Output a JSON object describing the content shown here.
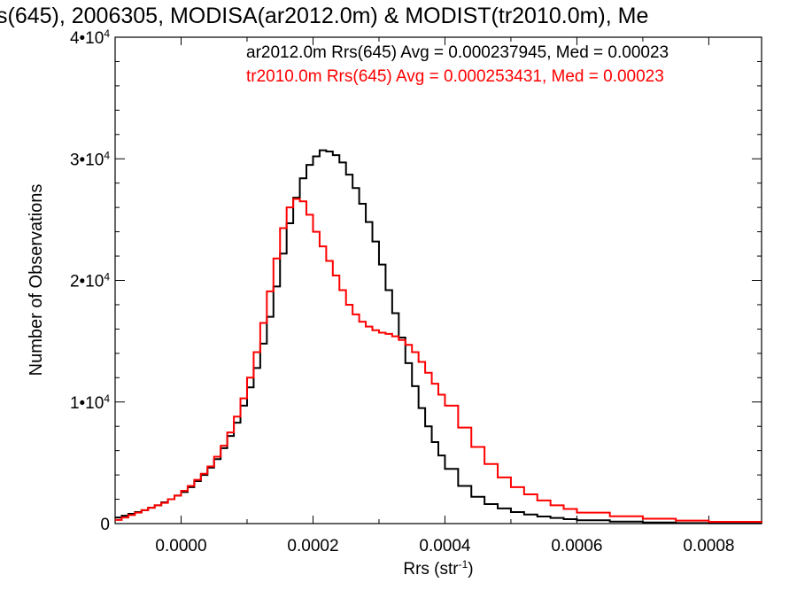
{
  "chart_data": {
    "type": "line",
    "title": "s(645), 2006305, MODISA(ar2012.0m) & MODIST(tr2010.0m), Me",
    "xlabel": "Rrs (str",
    "xlabel_sup": "-1",
    "xlabel_close": ")",
    "ylabel": "Number of Observations",
    "xlim": [
      -0.0001,
      0.00088
    ],
    "ylim": [
      0,
      40000
    ],
    "x_ticks": [
      0.0,
      0.0002,
      0.0004,
      0.0006,
      0.0008
    ],
    "x_tick_labels": [
      "0.0000",
      "0.0002",
      "0.0004",
      "0.0006",
      "0.0008"
    ],
    "y_ticks": [
      {
        "value": 0,
        "base": "0",
        "exp": ""
      },
      {
        "value": 10000,
        "base": "1•10",
        "exp": "4"
      },
      {
        "value": 20000,
        "base": "2•10",
        "exp": "4"
      },
      {
        "value": 30000,
        "base": "3•10",
        "exp": "4"
      },
      {
        "value": 40000,
        "base": "4•10",
        "exp": "4"
      }
    ],
    "grid": false,
    "legend_position": "top-right",
    "series": [
      {
        "name": "ar2012.0m Rrs(645)",
        "legend_text": "ar2012.0m Rrs(645) Avg = 0.000237945, Med = 0.00023",
        "color": "#000000",
        "x": [
          -0.0001,
          -9e-05,
          -8e-05,
          -7e-05,
          -6e-05,
          -5e-05,
          -4e-05,
          -3e-05,
          -2e-05,
          -1e-05,
          0.0,
          1e-05,
          2e-05,
          3e-05,
          4e-05,
          5e-05,
          6e-05,
          7e-05,
          8e-05,
          9e-05,
          0.0001,
          0.00011,
          0.00012,
          0.00013,
          0.00014,
          0.00015,
          0.00016,
          0.00017,
          0.00018,
          0.00019,
          0.0002,
          0.00021,
          0.00022,
          0.00023,
          0.00024,
          0.00025,
          0.00026,
          0.00027,
          0.00028,
          0.00029,
          0.0003,
          0.00031,
          0.00032,
          0.00033,
          0.00034,
          0.00035,
          0.00036,
          0.00037,
          0.00038,
          0.00039,
          0.0004,
          0.00042,
          0.00044,
          0.00046,
          0.00048,
          0.0005,
          0.00052,
          0.00054,
          0.00056,
          0.00058,
          0.0006,
          0.00065,
          0.0007,
          0.00075,
          0.0008,
          0.00088
        ],
        "y": [
          500,
          650,
          800,
          950,
          1100,
          1300,
          1500,
          1750,
          2000,
          2300,
          2600,
          3000,
          3500,
          4000,
          4600,
          5300,
          6200,
          7200,
          8300,
          9700,
          11200,
          12800,
          14800,
          17000,
          19500,
          22200,
          24700,
          26800,
          28400,
          29500,
          30200,
          30700,
          30600,
          30300,
          29700,
          28700,
          27600,
          26300,
          24800,
          23200,
          21300,
          19200,
          17300,
          15300,
          13200,
          11300,
          9500,
          8000,
          6700,
          5600,
          4500,
          3100,
          2200,
          1600,
          1250,
          950,
          750,
          580,
          460,
          360,
          270,
          160,
          90,
          50,
          30,
          15
        ]
      },
      {
        "name": "tr2010.0m Rrs(645)",
        "legend_text": "tr2010.0m Rrs(645) Avg = 0.000253431, Med = 0.00023",
        "color": "#ff0000",
        "x": [
          -0.0001,
          -9e-05,
          -8e-05,
          -7e-05,
          -6e-05,
          -5e-05,
          -4e-05,
          -3e-05,
          -2e-05,
          -1e-05,
          0.0,
          1e-05,
          2e-05,
          3e-05,
          4e-05,
          5e-05,
          6e-05,
          7e-05,
          8e-05,
          9e-05,
          0.0001,
          0.00011,
          0.00012,
          0.00013,
          0.00014,
          0.00015,
          0.00016,
          0.00017,
          0.00018,
          0.00019,
          0.0002,
          0.00021,
          0.00022,
          0.00023,
          0.00024,
          0.00025,
          0.00026,
          0.00027,
          0.00028,
          0.00029,
          0.0003,
          0.00031,
          0.00032,
          0.00033,
          0.00034,
          0.00035,
          0.00036,
          0.00037,
          0.00038,
          0.00039,
          0.0004,
          0.00042,
          0.00044,
          0.00046,
          0.00048,
          0.0005,
          0.00052,
          0.00054,
          0.00056,
          0.00058,
          0.0006,
          0.00065,
          0.0007,
          0.00075,
          0.0008,
          0.00088
        ],
        "y": [
          300,
          500,
          700,
          900,
          1100,
          1300,
          1500,
          1700,
          2000,
          2300,
          2700,
          3100,
          3600,
          4100,
          4700,
          5500,
          6400,
          7500,
          8800,
          10300,
          12000,
          14100,
          16500,
          19100,
          21800,
          24300,
          26000,
          26700,
          26500,
          25400,
          24000,
          22800,
          21600,
          20400,
          19200,
          18000,
          17200,
          16600,
          16200,
          15900,
          15700,
          15600,
          15400,
          15100,
          14700,
          14100,
          13300,
          12400,
          11500,
          10600,
          9700,
          7900,
          6300,
          4900,
          3800,
          3000,
          2400,
          1900,
          1500,
          1200,
          900,
          600,
          400,
          250,
          150,
          60
        ]
      }
    ]
  }
}
